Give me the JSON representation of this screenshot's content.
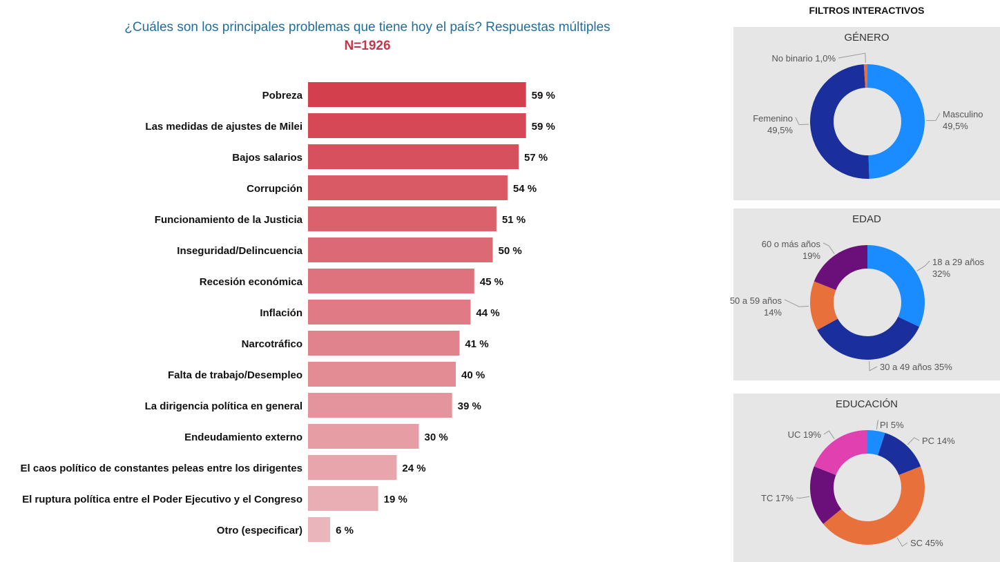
{
  "filters_title": "FILTROS INTERACTIVOS",
  "chart_data": [
    {
      "type": "bar",
      "orientation": "horizontal",
      "title": "¿Cuáles son los principales problemas que tiene hoy el país? Respuestas múltiples",
      "subtitle": "N=1926",
      "unit": "%",
      "xlim": [
        0,
        100
      ],
      "categories": [
        "Pobreza",
        "Las medidas de ajustes de Milei",
        "Bajos salarios",
        "Corrupción",
        "Funcionamiento de la Justicia",
        "Inseguridad/Delincuencia",
        "Recesión económica",
        "Inflación",
        "Narcotráfico",
        "Falta de trabajo/Desempleo",
        "La dirigencia política en general",
        "Endeudamiento externo",
        "El caos político de constantes peleas entre los dirigentes",
        "El ruptura política entre el Poder Ejecutivo y el Congreso",
        "Otro (especificar)"
      ],
      "values": [
        59,
        59,
        57,
        54,
        51,
        50,
        45,
        44,
        41,
        40,
        39,
        30,
        24,
        19,
        6
      ],
      "data_labels": [
        "59 %",
        "59 %",
        "57 %",
        "54 %",
        "51 %",
        "50 %",
        "45 %",
        "44 %",
        "41 %",
        "40 %",
        "39 %",
        "30 %",
        "24 %",
        "19 %",
        "6 %"
      ],
      "colors": {
        "title": "#1f6e9c",
        "subtitle": "#c7354a",
        "bar_start": "#d43f4e",
        "bar_end": "#ebb6bb"
      }
    },
    {
      "type": "pie",
      "variant": "donut",
      "title": "GÉNERO",
      "slices": [
        {
          "name": "Masculino",
          "value": 49.5,
          "label": "49,5%",
          "color": "#1a8cff"
        },
        {
          "name": "Femenino",
          "value": 49.5,
          "label": "49,5%",
          "color": "#1a2e9c"
        },
        {
          "name": "No binario",
          "value": 1.0,
          "label": "1,0%",
          "color": "#e8703a"
        }
      ]
    },
    {
      "type": "pie",
      "variant": "donut",
      "title": "EDAD",
      "slices": [
        {
          "name": "18 a 29 años",
          "value": 32,
          "label": "32%",
          "color": "#1a8cff"
        },
        {
          "name": "30 a 49 años",
          "value": 35,
          "label": "35%",
          "color": "#1a2e9c"
        },
        {
          "name": "50 a 59 años",
          "value": 14,
          "label": "14%",
          "color": "#e8703a"
        },
        {
          "name": "60 o más años",
          "value": 19,
          "label": "19%",
          "color": "#6b0f7a"
        }
      ]
    },
    {
      "type": "pie",
      "variant": "donut",
      "title": "EDUCACIÓN",
      "slices": [
        {
          "name": "PI",
          "value": 5,
          "label": "5%",
          "color": "#1a8cff"
        },
        {
          "name": "PC",
          "value": 14,
          "label": "14%",
          "color": "#1a2e9c"
        },
        {
          "name": "SC",
          "value": 45,
          "label": "45%",
          "color": "#e8703a"
        },
        {
          "name": "TC",
          "value": 17,
          "label": "17%",
          "color": "#6b0f7a"
        },
        {
          "name": "UC",
          "value": 19,
          "label": "19%",
          "color": "#e040b0"
        }
      ]
    }
  ]
}
